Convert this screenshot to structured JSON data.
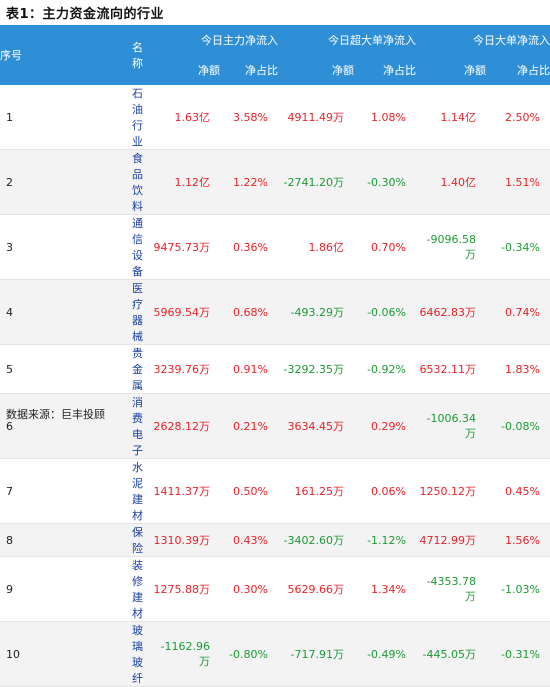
{
  "title": "表1：主力资金流向的行业",
  "headers": {
    "index": "序号",
    "name": "名称",
    "group_main": "今日主力净流入",
    "group_super": "今日超大单净流入",
    "group_large": "今日大单净流入",
    "net": "净额",
    "ratio": "净占比"
  },
  "rows": [
    {
      "idx": "1",
      "name": "石油行业",
      "main_net": "1.63亿",
      "main_ratio": "3.58%",
      "super_net": "4911.49万",
      "super_ratio": "1.08%",
      "large_net": "1.14亿",
      "large_ratio": "2.50%"
    },
    {
      "idx": "2",
      "name": "食品饮料",
      "main_net": "1.12亿",
      "main_ratio": "1.22%",
      "super_net": "-2741.20万",
      "super_ratio": "-0.30%",
      "large_net": "1.40亿",
      "large_ratio": "1.51%"
    },
    {
      "idx": "3",
      "name": "通信设备",
      "main_net": "9475.73万",
      "main_ratio": "0.36%",
      "super_net": "1.86亿",
      "super_ratio": "0.70%",
      "large_net": "-9096.58万",
      "large_ratio": "-0.34%"
    },
    {
      "idx": "4",
      "name": "医疗器械",
      "main_net": "5969.54万",
      "main_ratio": "0.68%",
      "super_net": "-493.29万",
      "super_ratio": "-0.06%",
      "large_net": "6462.83万",
      "large_ratio": "0.74%"
    },
    {
      "idx": "5",
      "name": "贵金属",
      "main_net": "3239.76万",
      "main_ratio": "0.91%",
      "super_net": "-3292.35万",
      "super_ratio": "-0.92%",
      "large_net": "6532.11万",
      "large_ratio": "1.83%"
    },
    {
      "idx": "6",
      "name": "消费电子",
      "main_net": "2628.12万",
      "main_ratio": "0.21%",
      "super_net": "3634.45万",
      "super_ratio": "0.29%",
      "large_net": "-1006.34万",
      "large_ratio": "-0.08%"
    },
    {
      "idx": "7",
      "name": "水泥建材",
      "main_net": "1411.37万",
      "main_ratio": "0.50%",
      "super_net": "161.25万",
      "super_ratio": "0.06%",
      "large_net": "1250.12万",
      "large_ratio": "0.45%"
    },
    {
      "idx": "8",
      "name": "保险",
      "main_net": "1310.39万",
      "main_ratio": "0.43%",
      "super_net": "-3402.60万",
      "super_ratio": "-1.12%",
      "large_net": "4712.99万",
      "large_ratio": "1.56%"
    },
    {
      "idx": "9",
      "name": "装修建材",
      "main_net": "1275.88万",
      "main_ratio": "0.30%",
      "super_net": "5629.66万",
      "super_ratio": "1.34%",
      "large_net": "-4353.78万",
      "large_ratio": "-1.03%"
    },
    {
      "idx": "10",
      "name": "玻璃玻纤",
      "main_net": "-1162.96万",
      "main_ratio": "-0.80%",
      "super_net": "-717.91万",
      "super_ratio": "-0.49%",
      "large_net": "-445.05万",
      "large_ratio": "-0.31%"
    }
  ],
  "source": "数据来源：巨丰投顾",
  "colors": {
    "header_bg": "#2f8fd6",
    "positive": "#e8222a",
    "negative": "#1e9a36",
    "name_link": "#1a3fa3"
  }
}
